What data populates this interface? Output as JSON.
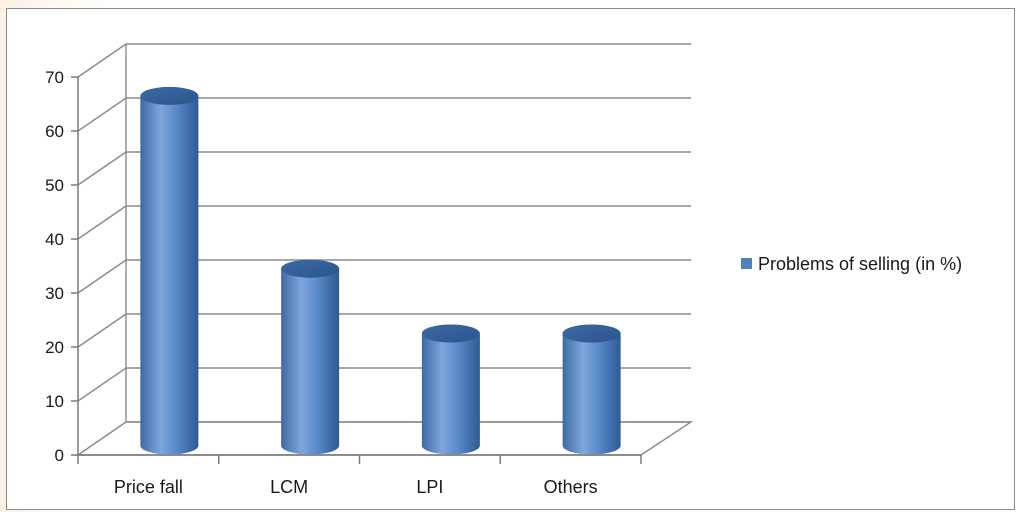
{
  "chart_data": {
    "type": "bar",
    "style": "3d-cylinder",
    "categories": [
      "Price fall",
      "LCM",
      "LPI",
      "Others"
    ],
    "series": [
      {
        "name": "Problems of  selling (in %)",
        "values": [
          64,
          32,
          20,
          20
        ]
      }
    ],
    "ylim": [
      0,
      70
    ],
    "yticks": [
      0,
      10,
      20,
      30,
      40,
      50,
      60,
      70
    ],
    "grid": true,
    "legend_position": "right",
    "colors": {
      "bar": "#4f81bd",
      "bar_light": "#8fb4e3",
      "bar_dark": "#2c5285"
    }
  }
}
